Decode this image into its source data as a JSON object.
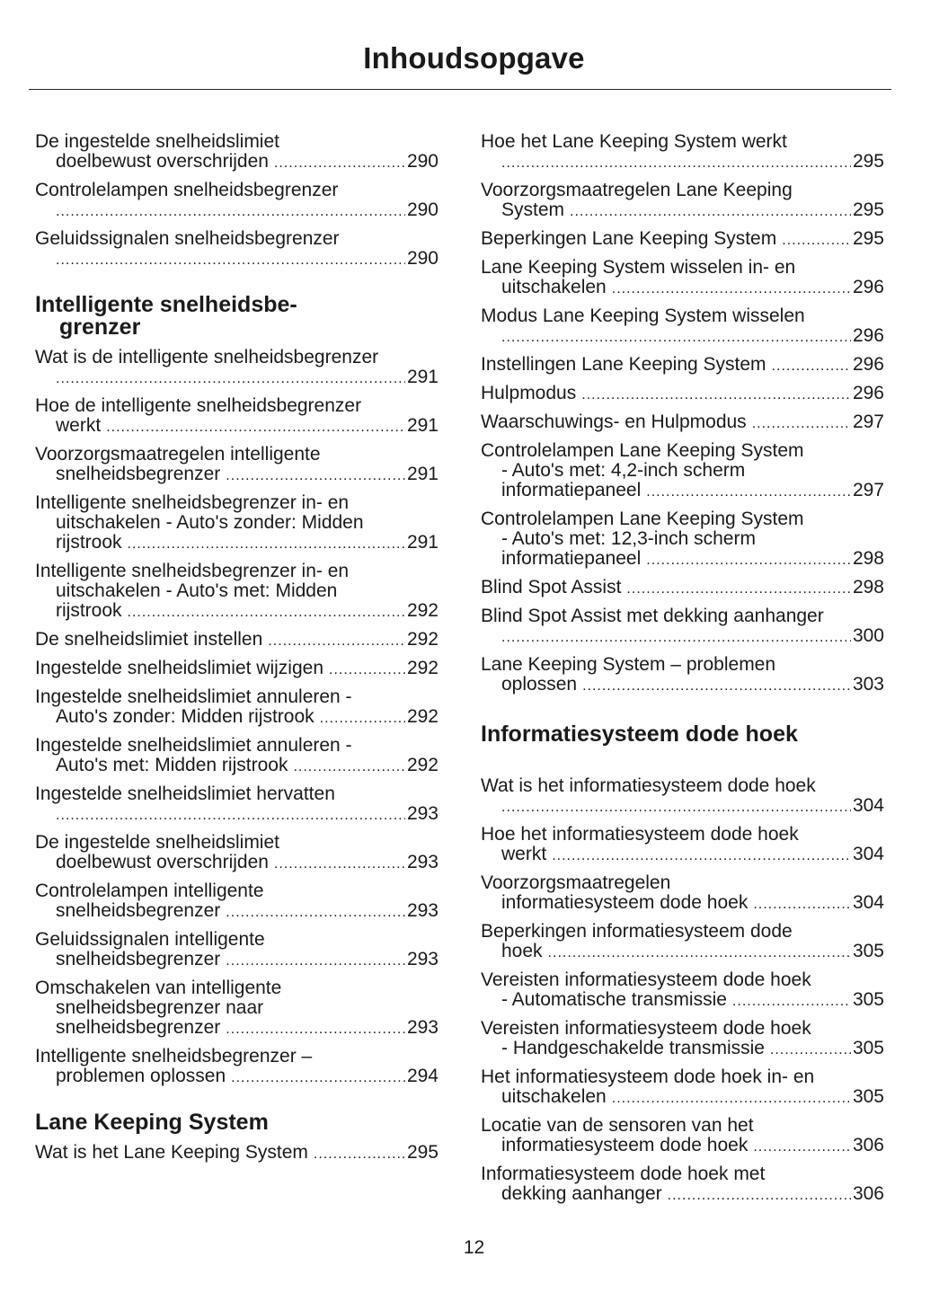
{
  "title": "Inhoudsopgave",
  "page_number": "12",
  "left": [
    {
      "type": "entry",
      "lines": [
        "De ingestelde snelheidslimiet",
        "doelbewust overschrijden"
      ],
      "page": "290"
    },
    {
      "type": "entry",
      "lines": [
        "Controlelampen snelheidsbegrenzer",
        ""
      ],
      "page": "290"
    },
    {
      "type": "entry",
      "lines": [
        "Geluidssignalen snelheidsbegrenzer",
        ""
      ],
      "page": "290"
    },
    {
      "type": "heading",
      "lines": [
        "Intelligente snelheidsbe-",
        "grenzer"
      ]
    },
    {
      "type": "entry",
      "lines": [
        "Wat is de intelligente snelheidsbegrenzer",
        ""
      ],
      "page": "291"
    },
    {
      "type": "entry",
      "lines": [
        "Hoe de intelligente snelheidsbegrenzer",
        "werkt"
      ],
      "page": "291"
    },
    {
      "type": "entry",
      "lines": [
        "Voorzorgsmaatregelen intelligente",
        "snelheidsbegrenzer"
      ],
      "page": "291"
    },
    {
      "type": "entry",
      "lines": [
        "Intelligente snelheidsbegrenzer in- en",
        "uitschakelen - Auto's zonder: Midden",
        "rijstrook"
      ],
      "page": "291"
    },
    {
      "type": "entry",
      "lines": [
        "Intelligente snelheidsbegrenzer in- en",
        "uitschakelen - Auto's met: Midden",
        "rijstrook"
      ],
      "page": "292"
    },
    {
      "type": "entry",
      "lines": [
        "De snelheidslimiet instellen"
      ],
      "page": "292"
    },
    {
      "type": "entry",
      "lines": [
        "Ingestelde snelheidslimiet wijzigen"
      ],
      "page": "292"
    },
    {
      "type": "entry",
      "lines": [
        "Ingestelde snelheidslimiet annuleren -",
        "Auto's zonder: Midden rijstrook"
      ],
      "page": "292"
    },
    {
      "type": "entry",
      "lines": [
        "Ingestelde snelheidslimiet annuleren -",
        "Auto's met: Midden rijstrook"
      ],
      "page": "292"
    },
    {
      "type": "entry",
      "lines": [
        "Ingestelde snelheidslimiet hervatten",
        ""
      ],
      "page": "293"
    },
    {
      "type": "entry",
      "lines": [
        "De ingestelde snelheidslimiet",
        "doelbewust overschrijden"
      ],
      "page": "293"
    },
    {
      "type": "entry",
      "lines": [
        "Controlelampen intelligente",
        "snelheidsbegrenzer"
      ],
      "page": "293"
    },
    {
      "type": "entry",
      "lines": [
        "Geluidssignalen intelligente",
        "snelheidsbegrenzer"
      ],
      "page": "293"
    },
    {
      "type": "entry",
      "lines": [
        "Omschakelen van intelligente",
        "snelheidsbegrenzer naar",
        "snelheidsbegrenzer"
      ],
      "page": "293"
    },
    {
      "type": "entry",
      "lines": [
        "Intelligente snelheidsbegrenzer –",
        "problemen oplossen"
      ],
      "page": "294"
    },
    {
      "type": "heading",
      "lines": [
        "Lane Keeping System"
      ]
    },
    {
      "type": "entry",
      "lines": [
        "Wat is het Lane Keeping System"
      ],
      "page": "295"
    }
  ],
  "right": [
    {
      "type": "entry",
      "lines": [
        "Hoe het Lane Keeping System werkt",
        ""
      ],
      "page": "295"
    },
    {
      "type": "entry",
      "lines": [
        "Voorzorgsmaatregelen Lane Keeping",
        "System"
      ],
      "page": "295"
    },
    {
      "type": "entry",
      "lines": [
        "Beperkingen Lane Keeping System"
      ],
      "page": "295"
    },
    {
      "type": "entry",
      "lines": [
        "Lane Keeping System wisselen in- en",
        "uitschakelen"
      ],
      "page": "296"
    },
    {
      "type": "entry",
      "lines": [
        "Modus Lane Keeping System wisselen",
        ""
      ],
      "page": "296"
    },
    {
      "type": "entry",
      "lines": [
        "Instellingen Lane Keeping System"
      ],
      "page": "296"
    },
    {
      "type": "entry",
      "lines": [
        "Hulpmodus"
      ],
      "page": "296"
    },
    {
      "type": "entry",
      "lines": [
        "Waarschuwings- en Hulpmodus"
      ],
      "page": "297"
    },
    {
      "type": "entry",
      "lines": [
        "Controlelampen Lane Keeping System",
        "- Auto's met: 4,2-inch scherm",
        "informatiepaneel"
      ],
      "page": "297"
    },
    {
      "type": "entry",
      "lines": [
        "Controlelampen Lane Keeping System",
        "- Auto's met: 12,3-inch scherm",
        "informatiepaneel"
      ],
      "page": "298"
    },
    {
      "type": "entry",
      "lines": [
        "Blind Spot Assist"
      ],
      "page": "298"
    },
    {
      "type": "entry",
      "lines": [
        "Blind Spot Assist met dekking aanhanger",
        ""
      ],
      "page": "300"
    },
    {
      "type": "entry",
      "lines": [
        "Lane Keeping System – problemen",
        "oplossen"
      ],
      "page": "303"
    },
    {
      "type": "heading",
      "lines": [
        "Informatiesysteem dode hoek"
      ]
    },
    {
      "type": "entry",
      "lines": [
        "Wat is het informatiesysteem dode hoek",
        ""
      ],
      "page": "304"
    },
    {
      "type": "entry",
      "lines": [
        "Hoe het informatiesysteem dode hoek",
        "werkt"
      ],
      "page": "304"
    },
    {
      "type": "entry",
      "lines": [
        "Voorzorgsmaatregelen",
        "informatiesysteem dode hoek"
      ],
      "page": "304"
    },
    {
      "type": "entry",
      "lines": [
        "Beperkingen informatiesysteem dode",
        "hoek"
      ],
      "page": "305"
    },
    {
      "type": "entry",
      "lines": [
        "Vereisten informatiesysteem dode hoek",
        "- Automatische transmissie"
      ],
      "page": "305"
    },
    {
      "type": "entry",
      "lines": [
        "Vereisten informatiesysteem dode hoek",
        "- Handgeschakelde transmissie"
      ],
      "page": "305"
    },
    {
      "type": "entry",
      "lines": [
        "Het informatiesysteem dode hoek in- en",
        "uitschakelen"
      ],
      "page": "305"
    },
    {
      "type": "entry",
      "lines": [
        "Locatie van de sensoren van het",
        "informatiesysteem dode hoek"
      ],
      "page": "306"
    },
    {
      "type": "entry",
      "lines": [
        "Informatiesysteem dode hoek met",
        "dekking aanhanger"
      ],
      "page": "306"
    }
  ]
}
